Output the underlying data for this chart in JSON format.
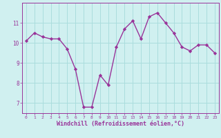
{
  "x": [
    0,
    1,
    2,
    3,
    4,
    5,
    6,
    7,
    8,
    9,
    10,
    11,
    12,
    13,
    14,
    15,
    16,
    17,
    18,
    19,
    20,
    21,
    22,
    23
  ],
  "y": [
    10.1,
    10.5,
    10.3,
    10.2,
    10.2,
    9.7,
    8.7,
    6.8,
    6.8,
    8.4,
    7.9,
    9.8,
    10.7,
    11.1,
    10.2,
    11.3,
    11.5,
    11.0,
    10.5,
    9.8,
    9.6,
    9.9,
    9.9,
    9.5
  ],
  "line_color": "#993399",
  "marker": "D",
  "marker_size": 2.2,
  "bg_color": "#d0f0f0",
  "grid_color": "#aadddd",
  "xlabel": "Windchill (Refroidissement éolien,°C)",
  "xlabel_color": "#993399",
  "tick_color": "#993399",
  "ylim": [
    6.5,
    12.0
  ],
  "xlim": [
    -0.5,
    23.5
  ],
  "yticks": [
    7,
    8,
    9,
    10,
    11
  ],
  "xticks": [
    0,
    1,
    2,
    3,
    4,
    5,
    6,
    7,
    8,
    9,
    10,
    11,
    12,
    13,
    14,
    15,
    16,
    17,
    18,
    19,
    20,
    21,
    22,
    23
  ],
  "spine_color": "#993399",
  "linewidth": 1.0
}
